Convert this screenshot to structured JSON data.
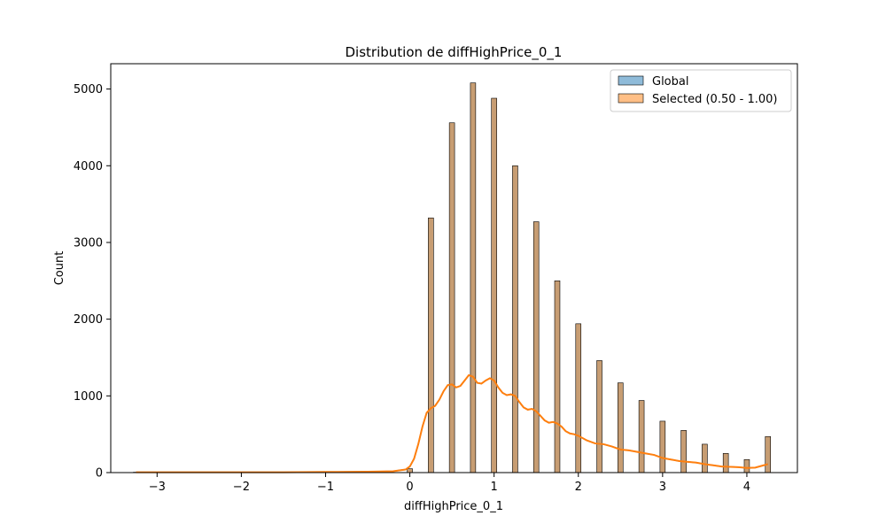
{
  "chart_data": {
    "type": "bar",
    "title": "Distribution de diffHighPrice_0_1",
    "xlabel": "diffHighPrice_0_1",
    "ylabel": "Count",
    "xlim": [
      -3.55,
      4.6
    ],
    "ylim": [
      0,
      5330
    ],
    "xticks": [
      -3,
      -2,
      -1,
      0,
      1,
      2,
      3,
      4
    ],
    "yticks": [
      0,
      1000,
      2000,
      3000,
      4000,
      5000
    ],
    "grid": false,
    "legend": {
      "placement": "top-right",
      "entries": [
        {
          "name": "Global",
          "color": "#1f77b4"
        },
        {
          "name": "Selected (0.50 - 1.00)",
          "color": "#ff7f0e"
        }
      ]
    },
    "bin_width": 0.0625,
    "histogram": {
      "x": [
        -3.25,
        0,
        0.25,
        0.5,
        0.75,
        1.0,
        1.25,
        1.5,
        1.75,
        2.0,
        2.25,
        2.5,
        2.75,
        3.0,
        3.25,
        3.5,
        3.75,
        4.0,
        4.25
      ],
      "counts": [
        5,
        50,
        3320,
        4560,
        5080,
        4880,
        4000,
        3270,
        2500,
        1940,
        1460,
        1170,
        940,
        670,
        550,
        370,
        250,
        170,
        470
      ]
    },
    "kde": {
      "x": [
        -3.25,
        -2.5,
        -1.5,
        -1.0,
        -0.5,
        -0.2,
        -0.05,
        0.0,
        0.05,
        0.1,
        0.15,
        0.2,
        0.25,
        0.3,
        0.35,
        0.4,
        0.45,
        0.5,
        0.55,
        0.6,
        0.65,
        0.7,
        0.75,
        0.8,
        0.85,
        0.9,
        0.95,
        1.0,
        1.05,
        1.1,
        1.15,
        1.2,
        1.25,
        1.3,
        1.35,
        1.4,
        1.45,
        1.5,
        1.55,
        1.6,
        1.65,
        1.7,
        1.75,
        1.8,
        1.85,
        1.9,
        1.95,
        2.0,
        2.1,
        2.2,
        2.3,
        2.4,
        2.5,
        2.6,
        2.7,
        2.8,
        2.9,
        3.0,
        3.1,
        3.2,
        3.3,
        3.4,
        3.5,
        3.6,
        3.7,
        3.8,
        3.9,
        4.0,
        4.1,
        4.2,
        4.25
      ],
      "y": [
        5,
        5,
        5,
        8,
        12,
        18,
        40,
        80,
        180,
        370,
        600,
        780,
        840,
        870,
        950,
        1060,
        1140,
        1150,
        1110,
        1130,
        1200,
        1270,
        1250,
        1170,
        1160,
        1200,
        1230,
        1200,
        1110,
        1040,
        1010,
        1020,
        1000,
        920,
        850,
        820,
        830,
        800,
        740,
        680,
        650,
        660,
        640,
        600,
        540,
        510,
        500,
        480,
        420,
        380,
        370,
        340,
        300,
        290,
        270,
        250,
        230,
        190,
        170,
        150,
        140,
        130,
        110,
        95,
        80,
        75,
        70,
        60,
        65,
        95,
        110
      ]
    }
  }
}
